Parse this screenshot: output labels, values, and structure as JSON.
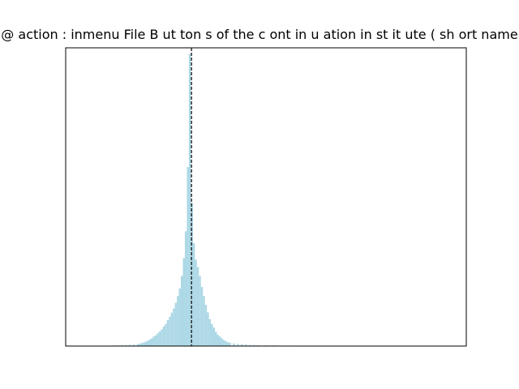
{
  "chart_data": {
    "type": "histogram",
    "title": "@ action : inmenu  File B ut ton s of the c ont in u ation in st it ute ( sh ort name",
    "xlabel": "",
    "ylabel": "",
    "xlim": [
      0,
      100
    ],
    "ylim": [
      0,
      100
    ],
    "axis_ticks": false,
    "grid": false,
    "bin_width": 0.5,
    "bars": [
      {
        "x": 12,
        "h": 0.2
      },
      {
        "x": 13,
        "h": 0.2
      },
      {
        "x": 14,
        "h": 0.3
      },
      {
        "x": 15,
        "h": 0.3
      },
      {
        "x": 16,
        "h": 0.4
      },
      {
        "x": 17,
        "h": 0.5
      },
      {
        "x": 18,
        "h": 0.6
      },
      {
        "x": 18.5,
        "h": 0.8
      },
      {
        "x": 19,
        "h": 1.0
      },
      {
        "x": 19.5,
        "h": 1.2
      },
      {
        "x": 20,
        "h": 1.5
      },
      {
        "x": 20.5,
        "h": 1.8
      },
      {
        "x": 21,
        "h": 2.2
      },
      {
        "x": 21.5,
        "h": 2.6
      },
      {
        "x": 22,
        "h": 3.2
      },
      {
        "x": 22.5,
        "h": 3.6
      },
      {
        "x": 23,
        "h": 4.3
      },
      {
        "x": 23.5,
        "h": 4.9
      },
      {
        "x": 24,
        "h": 5.6
      },
      {
        "x": 24.5,
        "h": 6.6
      },
      {
        "x": 25,
        "h": 7.4
      },
      {
        "x": 25.5,
        "h": 8.7
      },
      {
        "x": 26,
        "h": 9.8
      },
      {
        "x": 26.5,
        "h": 11.2
      },
      {
        "x": 27,
        "h": 12.6
      },
      {
        "x": 27.5,
        "h": 14.5
      },
      {
        "x": 28,
        "h": 16.8
      },
      {
        "x": 28.5,
        "h": 19.3
      },
      {
        "x": 29,
        "h": 23.5
      },
      {
        "x": 29.5,
        "h": 29.5
      },
      {
        "x": 30,
        "h": 38.5
      },
      {
        "x": 30.5,
        "h": 60.0
      },
      {
        "x": 31,
        "h": 98.0
      },
      {
        "x": 31.5,
        "h": 48.0
      },
      {
        "x": 32,
        "h": 34.5
      },
      {
        "x": 32.5,
        "h": 29.0
      },
      {
        "x": 33,
        "h": 26.5
      },
      {
        "x": 33.5,
        "h": 23.5
      },
      {
        "x": 34,
        "h": 19.8
      },
      {
        "x": 34.5,
        "h": 16.8
      },
      {
        "x": 35,
        "h": 13.8
      },
      {
        "x": 35.5,
        "h": 11.3
      },
      {
        "x": 36,
        "h": 9.0
      },
      {
        "x": 36.5,
        "h": 7.4
      },
      {
        "x": 37,
        "h": 6.2
      },
      {
        "x": 37.5,
        "h": 4.8
      },
      {
        "x": 38,
        "h": 3.8
      },
      {
        "x": 38.5,
        "h": 3.2
      },
      {
        "x": 39,
        "h": 2.6
      },
      {
        "x": 39.5,
        "h": 2.0
      },
      {
        "x": 40,
        "h": 1.6
      },
      {
        "x": 40.5,
        "h": 1.3
      },
      {
        "x": 41,
        "h": 1.1
      },
      {
        "x": 42,
        "h": 0.9
      },
      {
        "x": 43,
        "h": 0.7
      },
      {
        "x": 44,
        "h": 0.6
      },
      {
        "x": 45,
        "h": 0.5
      },
      {
        "x": 46,
        "h": 0.4
      },
      {
        "x": 47,
        "h": 0.35
      },
      {
        "x": 48,
        "h": 0.3
      },
      {
        "x": 50,
        "h": 0.25
      },
      {
        "x": 52,
        "h": 0.25
      },
      {
        "x": 54,
        "h": 0.2
      },
      {
        "x": 57,
        "h": 0.2
      },
      {
        "x": 60,
        "h": 0.15
      },
      {
        "x": 65,
        "h": 0.15
      }
    ],
    "reference_line": {
      "x": 31.4,
      "style": "dashed",
      "color": "#000000"
    },
    "bar_color": "#add8e6"
  }
}
